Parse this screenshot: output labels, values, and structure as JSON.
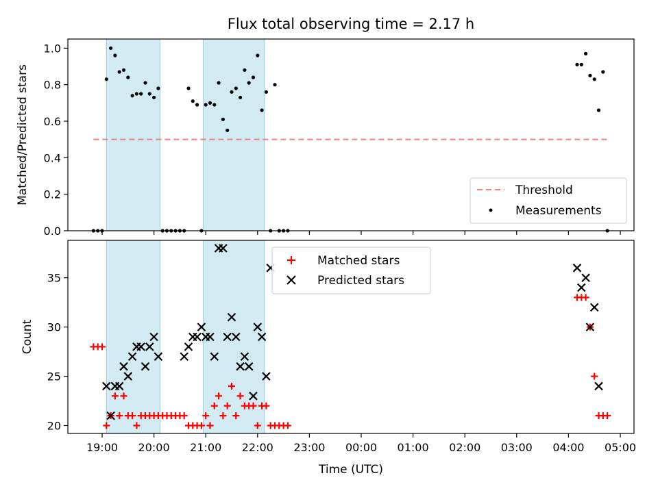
{
  "figure": {
    "title": "Flux total observing time = 2.17 h",
    "xlabel": "Time (UTC)",
    "x_ticks": [
      "19:00",
      "20:00",
      "21:00",
      "22:00",
      "23:00",
      "00:00",
      "01:00",
      "02:00",
      "03:00",
      "04:00",
      "05:00"
    ]
  },
  "chart_data": [
    {
      "type": "scatter",
      "panel": "top",
      "ylabel": "Matched/Predicted stars",
      "ylim": [
        0,
        1.05
      ],
      "y_ticks": [
        "0.0",
        "0.2",
        "0.4",
        "0.6",
        "0.8",
        "1.0"
      ],
      "shaded_intervals": [
        [
          "19:05",
          "20:07"
        ],
        [
          "20:57",
          "22:08"
        ]
      ],
      "threshold": {
        "name": "Threshold",
        "value": 0.5,
        "x_range": [
          "18:50",
          "04:47"
        ],
        "color": "#f08080"
      },
      "legend": {
        "position": "lower-right",
        "entries": [
          "Threshold",
          "Measurements"
        ]
      },
      "series": [
        {
          "name": "Measurements",
          "color": "#000000",
          "x": [
            "18:50",
            "18:55",
            "19:00",
            "19:05",
            "19:10",
            "19:15",
            "19:20",
            "19:25",
            "19:30",
            "19:35",
            "19:40",
            "19:45",
            "19:50",
            "19:55",
            "20:00",
            "20:05",
            "20:10",
            "20:15",
            "20:20",
            "20:25",
            "20:30",
            "20:35",
            "20:40",
            "20:45",
            "20:50",
            "20:55",
            "21:00",
            "21:05",
            "21:10",
            "21:15",
            "21:20",
            "21:25",
            "21:30",
            "21:35",
            "21:40",
            "21:45",
            "21:50",
            "21:55",
            "22:00",
            "22:05",
            "22:10",
            "22:15",
            "22:20",
            "22:25",
            "22:30",
            "22:35",
            "04:10",
            "04:15",
            "04:20",
            "04:25",
            "04:30",
            "04:35",
            "04:40",
            "04:45"
          ],
          "y": [
            0,
            0,
            0,
            0.83,
            1.0,
            0.96,
            0.87,
            0.88,
            0.84,
            0.74,
            0.75,
            0.75,
            0.81,
            0.75,
            0.73,
            0.78,
            0,
            0,
            0,
            0,
            0,
            0,
            0.78,
            0.71,
            0.69,
            0,
            0.69,
            0.7,
            0.69,
            0.81,
            0.61,
            0.55,
            0.76,
            0.78,
            0.73,
            0.88,
            0.81,
            0.84,
            0.96,
            0.66,
            0.76,
            0,
            0.8,
            0,
            0,
            0,
            0.91,
            0.91,
            0.97,
            0.85,
            0.83,
            0.66,
            0.87,
            0
          ]
        }
      ]
    },
    {
      "type": "scatter",
      "panel": "bottom",
      "ylabel": "Count",
      "ylim": [
        19.2,
        38.8
      ],
      "y_ticks": [
        "20",
        "25",
        "30",
        "35"
      ],
      "shaded_intervals": [
        [
          "19:05",
          "20:07"
        ],
        [
          "20:57",
          "22:08"
        ]
      ],
      "legend": {
        "position": "upper-center",
        "entries": [
          "Matched stars",
          "Predicted stars"
        ]
      },
      "series": [
        {
          "name": "Matched stars",
          "marker": "plus",
          "color": "#ff0000",
          "x": [
            "18:50",
            "18:55",
            "19:00",
            "19:05",
            "19:10",
            "19:15",
            "19:20",
            "19:25",
            "19:30",
            "19:35",
            "19:40",
            "19:45",
            "19:50",
            "19:55",
            "20:00",
            "20:05",
            "20:10",
            "20:15",
            "20:20",
            "20:25",
            "20:30",
            "20:35",
            "20:40",
            "20:45",
            "20:50",
            "20:55",
            "21:00",
            "21:05",
            "21:10",
            "21:15",
            "21:20",
            "21:25",
            "21:30",
            "21:35",
            "21:40",
            "21:45",
            "21:50",
            "21:55",
            "22:00",
            "22:05",
            "22:10",
            "22:15",
            "22:20",
            "22:25",
            "22:30",
            "22:35",
            "04:10",
            "04:15",
            "04:20",
            "04:25",
            "04:30",
            "04:35",
            "04:40",
            "04:45"
          ],
          "y": [
            28,
            28,
            28,
            20,
            21,
            23,
            21,
            23,
            21,
            21,
            20,
            21,
            21,
            21,
            21,
            21,
            21,
            21,
            21,
            21,
            21,
            21,
            20,
            20,
            20,
            20,
            21,
            20,
            22,
            23,
            21,
            22,
            24,
            21,
            23,
            22,
            22,
            22,
            20,
            22,
            22,
            20,
            20,
            20,
            20,
            20,
            33,
            33,
            33,
            30,
            25,
            21,
            21,
            21
          ]
        },
        {
          "name": "Predicted stars",
          "marker": "x",
          "color": "#000000",
          "x": [
            "19:05",
            "19:10",
            "19:15",
            "19:20",
            "19:25",
            "19:30",
            "19:35",
            "19:40",
            "19:45",
            "19:50",
            "19:55",
            "20:00",
            "20:05",
            "20:35",
            "20:40",
            "20:45",
            "20:50",
            "20:55",
            "21:00",
            "21:05",
            "21:10",
            "21:15",
            "21:20",
            "21:25",
            "21:30",
            "21:35",
            "21:40",
            "21:45",
            "21:50",
            "21:55",
            "22:00",
            "22:05",
            "22:10",
            "22:15",
            "04:10",
            "04:15",
            "04:20",
            "04:25",
            "04:30",
            "04:35",
            "04:40"
          ],
          "y": [
            24,
            21,
            24,
            24,
            26,
            25,
            27,
            28,
            28,
            26,
            28,
            29,
            27,
            27,
            28,
            29,
            29,
            30,
            29,
            29,
            27,
            38,
            38,
            29,
            31,
            29,
            26,
            27,
            26,
            23,
            30,
            29,
            25,
            36,
            36,
            34,
            35,
            30,
            32,
            24,
            null
          ]
        }
      ]
    }
  ]
}
